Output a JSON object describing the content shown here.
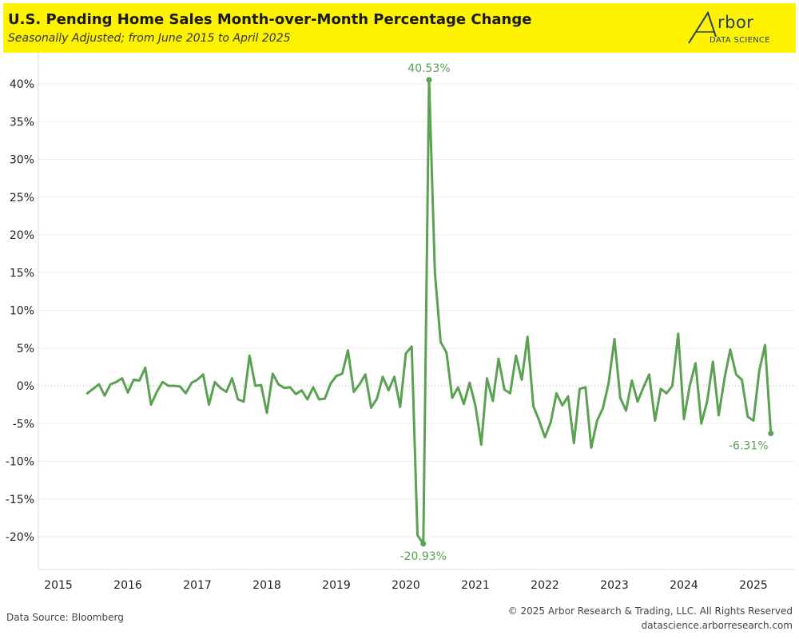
{
  "header": {
    "title": "U.S. Pending Home Sales Month-over-Month Percentage Change",
    "subtitle": "Seasonally Adjusted; from June 2015 to April 2025"
  },
  "logo": {
    "word": "rbor",
    "sub": "DATA SCIENCE",
    "color": "#1f3f66"
  },
  "footer": {
    "source": "Data Source: Bloomberg",
    "copyright": "© 2025 Arbor Research & Trading, LLC. All Rights Reserved",
    "website": "datascience.arborresearch.com"
  },
  "colors": {
    "header_bg": "#fff200",
    "line": "#5aa152"
  },
  "chart_data": {
    "type": "line",
    "title": "U.S. Pending Home Sales Month-over-Month Percentage Change",
    "subtitle": "Seasonally Adjusted; from June 2015 to April 2025",
    "xlabel": "",
    "ylabel": "",
    "start": "2015-06",
    "x_ticks": [
      "2015",
      "2016",
      "2017",
      "2018",
      "2019",
      "2020",
      "2021",
      "2022",
      "2023",
      "2024",
      "2025"
    ],
    "y_ticks": [
      40,
      35,
      30,
      25,
      20,
      15,
      10,
      5,
      0,
      -5,
      -10,
      -15,
      -20
    ],
    "y_tick_suffix": "%",
    "ylim": [
      -24,
      43
    ],
    "grid": true,
    "zero_line": "dotted",
    "legend": "none",
    "series": [
      {
        "values": [
          -1.0,
          -0.4,
          0.2,
          -1.3,
          0.2,
          0.5,
          1.0,
          -0.9,
          0.8,
          0.7,
          2.4,
          -2.5,
          -0.8,
          0.5,
          0.0,
          0.0,
          -0.1,
          -1.0,
          0.4,
          0.8,
          1.5,
          -2.5,
          0.5,
          -0.3,
          -0.8,
          1.0,
          -1.8,
          -2.1,
          4.0,
          0.0,
          0.1,
          -3.6,
          1.6,
          0.2,
          -0.3,
          -0.2,
          -1.1,
          -0.6,
          -1.8,
          -0.2,
          -1.8,
          -1.7,
          0.3,
          1.3,
          1.6,
          4.7,
          -0.8,
          0.2,
          1.5,
          -2.9,
          -1.7,
          1.2,
          -0.6,
          1.2,
          -2.8,
          4.3,
          5.2,
          -19.8,
          -20.93,
          40.53,
          15.0,
          5.8,
          4.4,
          -1.6,
          -0.2,
          -2.4,
          0.4,
          -2.6,
          -7.8,
          1.0,
          -2.0,
          3.6,
          -0.5,
          -1.0,
          4.0,
          0.8,
          6.5,
          -2.7,
          -4.6,
          -6.8,
          -4.8,
          -1.0,
          -2.6,
          -1.4,
          -7.6,
          -0.4,
          -0.2,
          -8.2,
          -4.6,
          -3.0,
          0.4,
          6.2,
          -1.6,
          -3.3,
          0.7,
          -2.1,
          -0.2,
          1.5,
          -4.6,
          -0.4,
          -1.0,
          0.0,
          6.9,
          -4.4,
          0.0,
          3.0,
          -5.0,
          -2.1,
          3.2,
          -3.9,
          1.0,
          4.8,
          1.5,
          0.8,
          -4.1,
          -4.6,
          2.0,
          5.4,
          -6.31
        ]
      }
    ],
    "annotations": [
      {
        "label": "40.53%",
        "index": 59
      },
      {
        "label": "-20.93%",
        "index": 58
      },
      {
        "label": "-6.31%",
        "index": 118
      }
    ]
  }
}
